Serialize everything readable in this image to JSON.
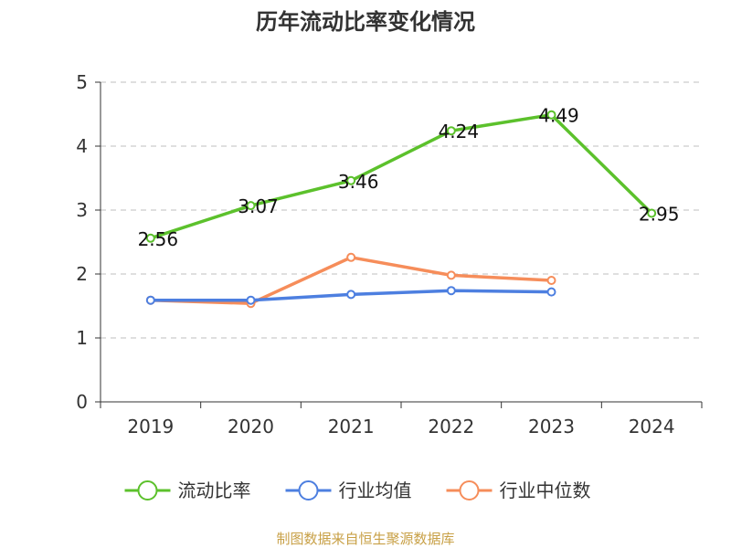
{
  "source_text": "制图数据来自恒生聚源数据库",
  "source_color": "#c8a046",
  "chart_data": {
    "type": "line",
    "title": "历年流动比率变化情况",
    "categories": [
      "2019",
      "2020",
      "2021",
      "2022",
      "2023",
      "2024"
    ],
    "ylim": [
      0,
      5
    ],
    "yticks": [
      0,
      1,
      2,
      3,
      4,
      5
    ],
    "grid": "horizontal-dashed",
    "legend_position": "bottom",
    "series": [
      {
        "name": "流动比率",
        "color": "#5cc12c",
        "values": [
          2.56,
          3.07,
          3.46,
          4.24,
          4.49,
          2.95
        ],
        "show_labels": true
      },
      {
        "name": "行业均值",
        "color": "#4d7fe0",
        "values": [
          1.59,
          1.59,
          1.68,
          1.74,
          1.72,
          null
        ],
        "show_labels": false
      },
      {
        "name": "行业中位数",
        "color": "#f68d5a",
        "values": [
          1.59,
          1.54,
          2.26,
          1.98,
          1.9,
          null
        ],
        "show_labels": false
      }
    ]
  }
}
